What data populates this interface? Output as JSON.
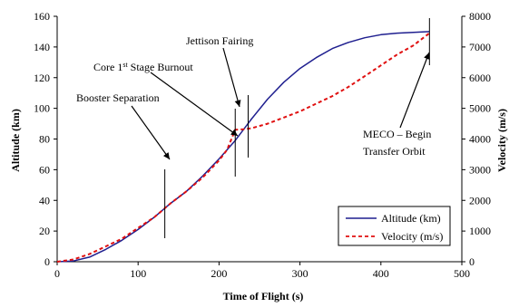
{
  "chart_data": {
    "type": "line",
    "title": "",
    "xlabel": "Time of Flight (s)",
    "ylabel": "Altitude (km)",
    "y2label": "Velocity (m/s)",
    "xlim": [
      0,
      500
    ],
    "ylim": [
      0,
      160
    ],
    "y2lim": [
      0,
      8000
    ],
    "x_ticks": [
      0,
      100,
      200,
      300,
      400,
      500
    ],
    "y_ticks": [
      0,
      20,
      40,
      60,
      80,
      100,
      120,
      140,
      160
    ],
    "y2_ticks": [
      0,
      1000,
      2000,
      3000,
      4000,
      5000,
      6000,
      7000,
      8000
    ],
    "grid": false,
    "legend_position": "bottom-right",
    "series": [
      {
        "name": "Altitude (km)",
        "axis": "left",
        "color": "#1F1F8F",
        "style": "solid",
        "x": [
          0,
          20,
          40,
          60,
          80,
          100,
          120,
          140,
          160,
          180,
          200,
          210,
          220,
          230,
          240,
          260,
          280,
          300,
          320,
          340,
          360,
          380,
          400,
          420,
          440,
          460
        ],
        "y": [
          0,
          0.5,
          3,
          8,
          14,
          21,
          29,
          38,
          46,
          56,
          67,
          73,
          79,
          86,
          93,
          106,
          117,
          126,
          133,
          139,
          143,
          146,
          148,
          149,
          149.5,
          150
        ]
      },
      {
        "name": "Velocity (m/s)",
        "axis": "right",
        "color": "#E01010",
        "style": "dashed",
        "x": [
          0,
          20,
          40,
          60,
          80,
          100,
          120,
          140,
          160,
          180,
          200,
          210,
          220,
          230,
          240,
          260,
          280,
          300,
          320,
          340,
          360,
          380,
          400,
          420,
          440,
          460
        ],
        "y": [
          0,
          75,
          250,
          500,
          750,
          1100,
          1450,
          1900,
          2300,
          2750,
          3300,
          3650,
          4300,
          4320,
          4350,
          4500,
          4700,
          4900,
          5150,
          5400,
          5700,
          6050,
          6400,
          6750,
          7050,
          7450
        ]
      }
    ],
    "events": [
      {
        "label": "Booster Separation",
        "x": 133
      },
      {
        "label_main": "Core 1",
        "label_sup": "st",
        "label_rest": " Stage Burnout",
        "x": 220
      },
      {
        "label": "Jettison Fairing",
        "x": 236
      },
      {
        "label_line1": "MECO – Begin",
        "label_line2": "Transfer Orbit",
        "x": 460
      }
    ]
  }
}
